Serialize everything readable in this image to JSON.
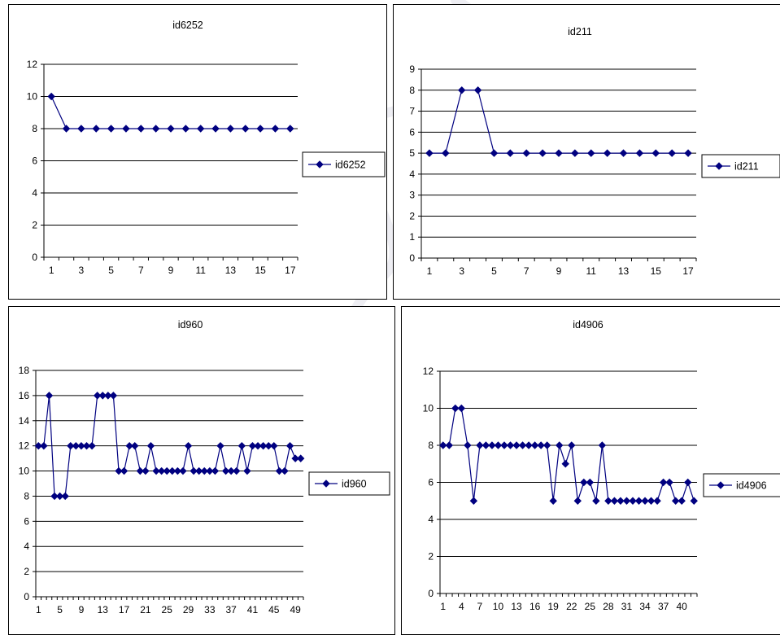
{
  "colors": {
    "series": "#000080",
    "grid": "#000000",
    "frame": "#000000",
    "watermark": "#e6e6ee"
  },
  "chart_data": [
    {
      "type": "line",
      "title": "id6252",
      "x": [
        1,
        2,
        3,
        4,
        5,
        6,
        7,
        8,
        9,
        10,
        11,
        12,
        13,
        14,
        15,
        16,
        17
      ],
      "xticks": [
        1,
        3,
        5,
        7,
        9,
        11,
        13,
        15,
        17
      ],
      "ylim": [
        0,
        12
      ],
      "yticks": [
        0,
        2,
        4,
        6,
        8,
        10,
        12
      ],
      "grid": true,
      "legend_position": "right",
      "series": [
        {
          "name": "id6252",
          "values": [
            10,
            8,
            8,
            8,
            8,
            8,
            8,
            8,
            8,
            8,
            8,
            8,
            8,
            8,
            8,
            8,
            8
          ]
        }
      ]
    },
    {
      "type": "line",
      "title": "id211",
      "x": [
        1,
        2,
        3,
        4,
        5,
        6,
        7,
        8,
        9,
        10,
        11,
        12,
        13,
        14,
        15,
        16,
        17
      ],
      "xticks": [
        1,
        3,
        5,
        7,
        9,
        11,
        13,
        15,
        17
      ],
      "ylim": [
        0,
        9
      ],
      "yticks": [
        0,
        1,
        2,
        3,
        4,
        5,
        6,
        7,
        8,
        9
      ],
      "grid": true,
      "legend_position": "right",
      "series": [
        {
          "name": "id211",
          "values": [
            5,
            5,
            8,
            8,
            5,
            5,
            5,
            5,
            5,
            5,
            5,
            5,
            5,
            5,
            5,
            5,
            5
          ]
        }
      ]
    },
    {
      "type": "line",
      "title": "id960",
      "x": [
        1,
        2,
        3,
        4,
        5,
        6,
        7,
        8,
        9,
        10,
        11,
        12,
        13,
        14,
        15,
        16,
        17,
        18,
        19,
        20,
        21,
        22,
        23,
        24,
        25,
        26,
        27,
        28,
        29,
        30,
        31,
        32,
        33,
        34,
        35,
        36,
        37,
        38,
        39,
        40,
        41,
        42,
        43,
        44,
        45,
        46,
        47,
        48,
        49,
        50
      ],
      "xticks": [
        1,
        5,
        9,
        13,
        17,
        21,
        25,
        29,
        33,
        37,
        41,
        45,
        49
      ],
      "ylim": [
        0,
        18
      ],
      "yticks": [
        0,
        2,
        4,
        6,
        8,
        10,
        12,
        14,
        16,
        18
      ],
      "grid": true,
      "legend_position": "right",
      "series": [
        {
          "name": "id960",
          "values": [
            12,
            12,
            16,
            8,
            8,
            8,
            12,
            12,
            12,
            12,
            12,
            16,
            16,
            16,
            16,
            10,
            10,
            12,
            12,
            10,
            10,
            12,
            10,
            10,
            10,
            10,
            10,
            10,
            12,
            10,
            10,
            10,
            10,
            10,
            12,
            10,
            10,
            10,
            12,
            10,
            12,
            12,
            12,
            12,
            12,
            10,
            10,
            12,
            11,
            11
          ]
        }
      ]
    },
    {
      "type": "line",
      "title": "id4906",
      "x": [
        1,
        2,
        3,
        4,
        5,
        6,
        7,
        8,
        9,
        10,
        11,
        12,
        13,
        14,
        15,
        16,
        17,
        18,
        19,
        20,
        21,
        22,
        23,
        24,
        25,
        26,
        27,
        28,
        29,
        30,
        31,
        32,
        33,
        34,
        35,
        36,
        37,
        38,
        39,
        40,
        41,
        42
      ],
      "xticks": [
        1,
        4,
        7,
        10,
        13,
        16,
        19,
        22,
        25,
        28,
        31,
        34,
        37,
        40
      ],
      "ylim": [
        0,
        12
      ],
      "yticks": [
        0,
        2,
        4,
        6,
        8,
        10,
        12
      ],
      "grid": true,
      "legend_position": "right",
      "series": [
        {
          "name": "id4906",
          "values": [
            8,
            8,
            10,
            10,
            8,
            5,
            8,
            8,
            8,
            8,
            8,
            8,
            8,
            8,
            8,
            8,
            8,
            8,
            5,
            8,
            7,
            8,
            5,
            6,
            6,
            5,
            8,
            5,
            5,
            5,
            5,
            5,
            5,
            5,
            5,
            5,
            6,
            6,
            5,
            5,
            6,
            5
          ]
        }
      ]
    }
  ]
}
